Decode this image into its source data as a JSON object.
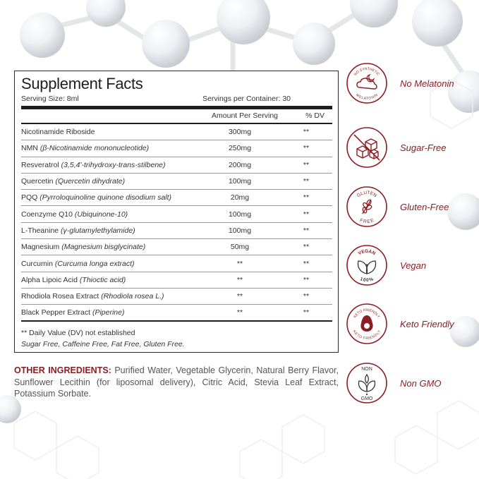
{
  "facts": {
    "title": "Supplement Facts",
    "serving_size": "Serving Size: 8ml",
    "servings_per_container": "Servings per Container: 30",
    "amount_header": "Amount Per Serving",
    "dv_header": "% DV",
    "ingredients": [
      {
        "name": "Nicotinamide Riboside",
        "sub": "",
        "amount": "300mg",
        "dv": "**"
      },
      {
        "name": "NMN",
        "sub": "(β-Nicotinamide mononucleotide)",
        "amount": "250mg",
        "dv": "**"
      },
      {
        "name": "Resveratrol",
        "sub": "(3,5,4'-trihydroxy-trans-stilbene)",
        "amount": "200mg",
        "dv": "**"
      },
      {
        "name": "Quercetin",
        "sub": "(Quercetin dihydrate)",
        "amount": "100mg",
        "dv": "**"
      },
      {
        "name": "PQQ",
        "sub": "(Pyrroloquinoline quinone disodium salt)",
        "amount": "20mg",
        "dv": "**"
      },
      {
        "name": "Coenzyme Q10",
        "sub": "(Ubiquinone-10)",
        "amount": "100mg",
        "dv": "**"
      },
      {
        "name": "L-Theanine",
        "sub": "(γ-glutamylethylamide)",
        "amount": "100mg",
        "dv": "**"
      },
      {
        "name": "Magnesium",
        "sub": "(Magnesium bisglycinate)",
        "amount": "50mg",
        "dv": "**"
      },
      {
        "name": "Curcumin",
        "sub": "(Curcuma longa extract)",
        "amount": "**",
        "dv": "**"
      },
      {
        "name": "Alpha Lipoic Acid",
        "sub": "(Thioctic acid)",
        "amount": "**",
        "dv": "**"
      },
      {
        "name": "Rhodiola Rosea Extract",
        "sub": "(Rhodiola rosea L.)",
        "amount": "**",
        "dv": "**"
      },
      {
        "name": "Black Pepper Extract",
        "sub": "(Piperine)",
        "amount": "**",
        "dv": "**"
      }
    ],
    "footnote": "** Daily Value (DV) not established",
    "free_line": "Sugar Free, Caffeine Free, Fat Free, Gluten Free."
  },
  "other_ingredients": {
    "label": "OTHER INGREDIENTS:",
    "text": " Purified Water, Vegetable Glycerin, Natural Berry Flavor, Sunflower Lecithin (for liposomal delivery), Citric Acid, Stevia Leaf Extract, Potassium Sorbate."
  },
  "badges": [
    {
      "label": "No Melatonin",
      "icon": "no-melatonin-icon",
      "ring_top": "NO SYNTHETIC",
      "ring_bottom": "MELATONIN"
    },
    {
      "label": "Sugar-Free",
      "icon": "sugar-free-icon"
    },
    {
      "label": "Gluten-Free",
      "icon": "gluten-free-icon",
      "ring_top": "GLUTEN",
      "ring_bottom": "FREE"
    },
    {
      "label": "Vegan",
      "icon": "vegan-icon",
      "ring_top": "VEGAN",
      "ring_bottom": "100%"
    },
    {
      "label": "Keto Friendly",
      "icon": "keto-friendly-icon",
      "ring_top": "KETO FRIENDLY",
      "ring_bottom": "KETO FRIENDLY"
    },
    {
      "label": "Non GMO",
      "icon": "non-gmo-icon",
      "ring_top": "NON",
      "ring_bottom": "GMO"
    }
  ],
  "colors": {
    "accent": "#8b1e22",
    "text": "#333333",
    "rule": "#1e1e1e"
  }
}
